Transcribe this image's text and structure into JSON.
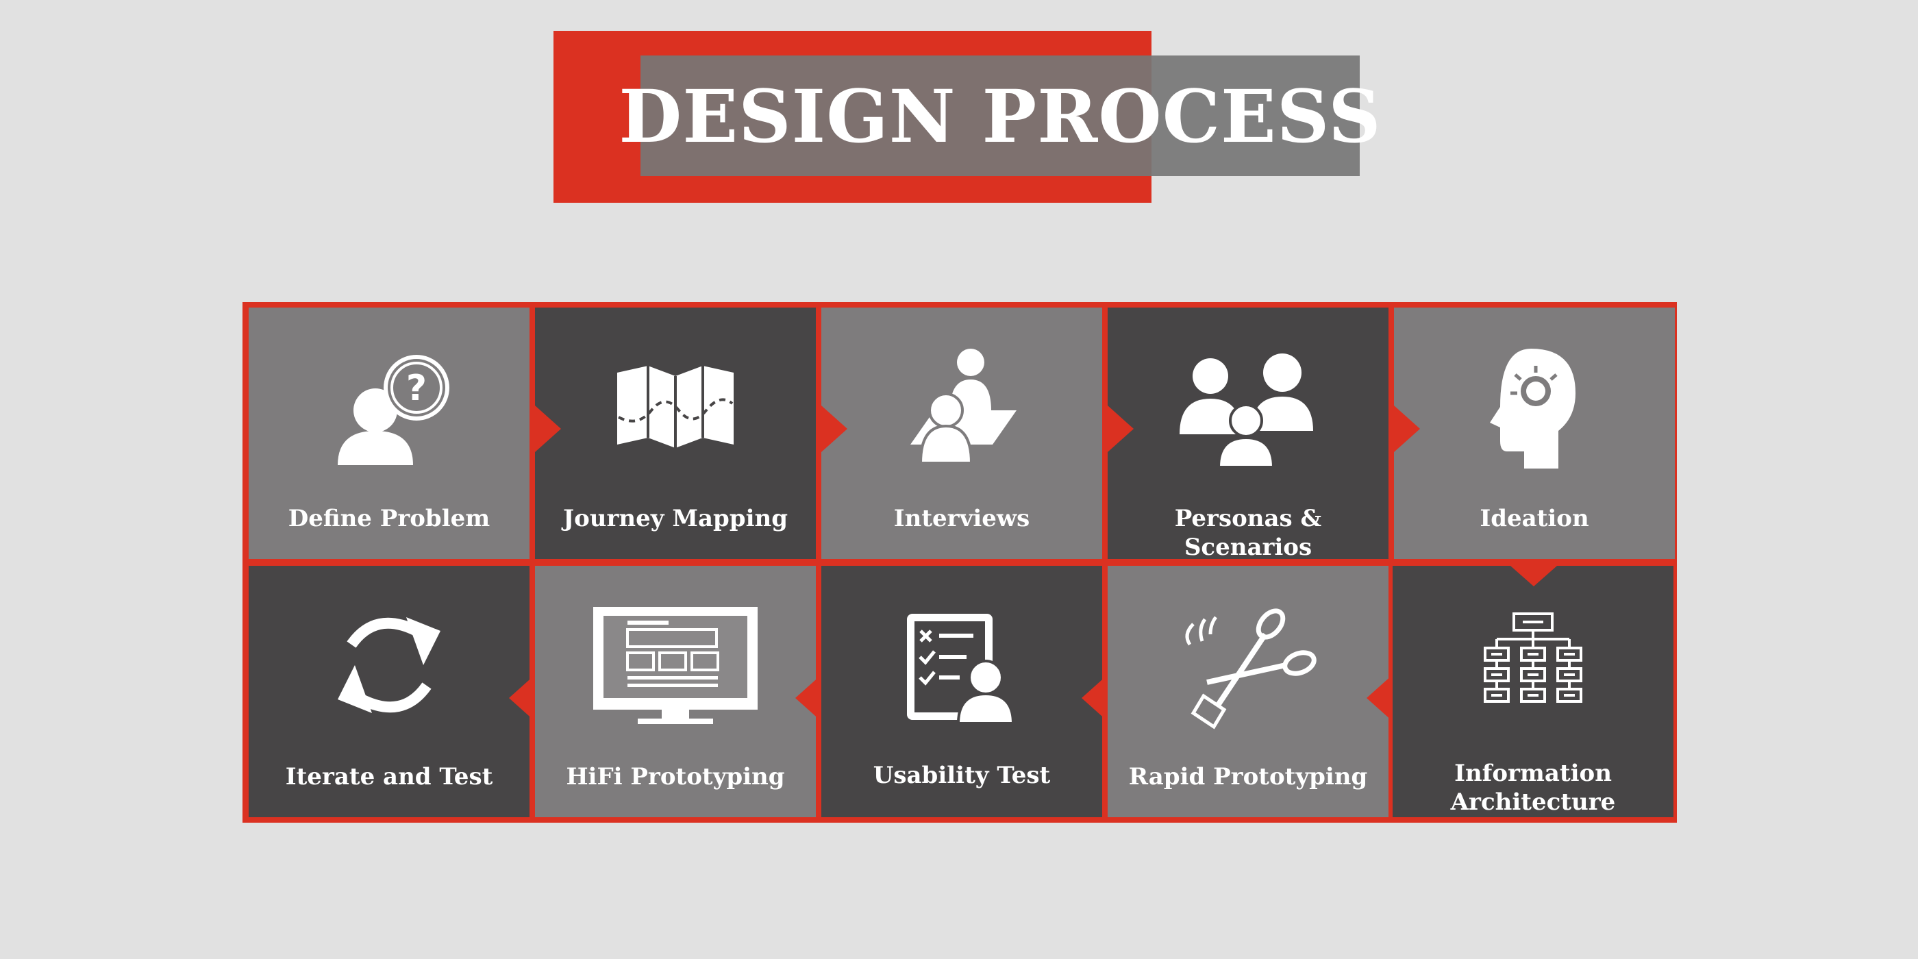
{
  "title": "DESIGN PROCESS",
  "colors": {
    "accent": "#db3121",
    "tile_light": "#7e7c7d",
    "tile_dark": "#474546",
    "background": "#e1e1e1"
  },
  "steps": [
    {
      "label": "Define Problem",
      "icon": "person-question-icon"
    },
    {
      "label": "Journey Mapping",
      "icon": "folded-map-icon"
    },
    {
      "label": "Interviews",
      "icon": "interview-people-icon"
    },
    {
      "label": "Personas & Scenarios",
      "icon": "persona-group-icon"
    },
    {
      "label": "Ideation",
      "icon": "head-lightbulb-icon"
    },
    {
      "label": "Information Architecture",
      "icon": "sitemap-icon"
    },
    {
      "label": "Rapid Prototyping",
      "icon": "scissors-icon"
    },
    {
      "label": "Usability Test",
      "icon": "checklist-person-icon"
    },
    {
      "label": "HiFi Prototyping",
      "icon": "monitor-wireframe-icon"
    },
    {
      "label": "Iterate and Test",
      "icon": "cycle-arrows-icon"
    }
  ]
}
